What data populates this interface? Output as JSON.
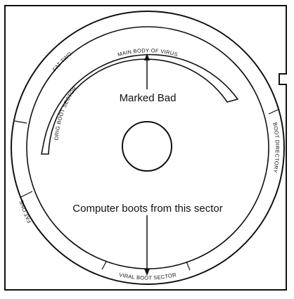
{
  "colors": {
    "line": "#111111",
    "background": "#ffffff"
  },
  "labels": {
    "marked_bad": "Marked Bad",
    "boot_note": "Computer boots from this sector"
  },
  "arc_labels": {
    "main_body": "MAIN BODY OF VIRUS",
    "fat_two": "FAT TWO",
    "orig_boot": "ORIG BOOT SECTOR",
    "boot_dir": "BOOT DIRECTORY",
    "fat_one": "FAT ONE",
    "viral_boot": "VIRAL BOOT SECTOR"
  }
}
